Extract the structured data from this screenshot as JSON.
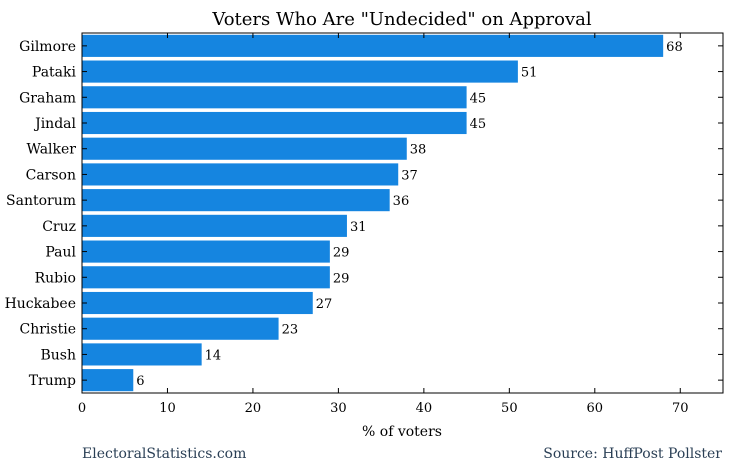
{
  "chart_data": {
    "type": "bar",
    "orientation": "horizontal",
    "title": "Voters Who Are \"Undecided\" on Approval",
    "xlabel": "% of voters",
    "ylabel": "",
    "categories": [
      "Gilmore",
      "Pataki",
      "Graham",
      "Jindal",
      "Walker",
      "Carson",
      "Santorum",
      "Cruz",
      "Paul",
      "Rubio",
      "Huckabee",
      "Christie",
      "Bush",
      "Trump"
    ],
    "values": [
      68,
      51,
      45,
      45,
      38,
      37,
      36,
      31,
      29,
      29,
      27,
      23,
      14,
      6
    ],
    "xlim": [
      0,
      75
    ],
    "xticks": [
      0,
      10,
      20,
      30,
      40,
      50,
      60,
      70
    ],
    "bar_color": "#1585e0",
    "data_labels": true,
    "grid": false
  },
  "footer": {
    "left": "ElectoralStatistics.com",
    "right": "Source: HuffPost Pollster"
  }
}
